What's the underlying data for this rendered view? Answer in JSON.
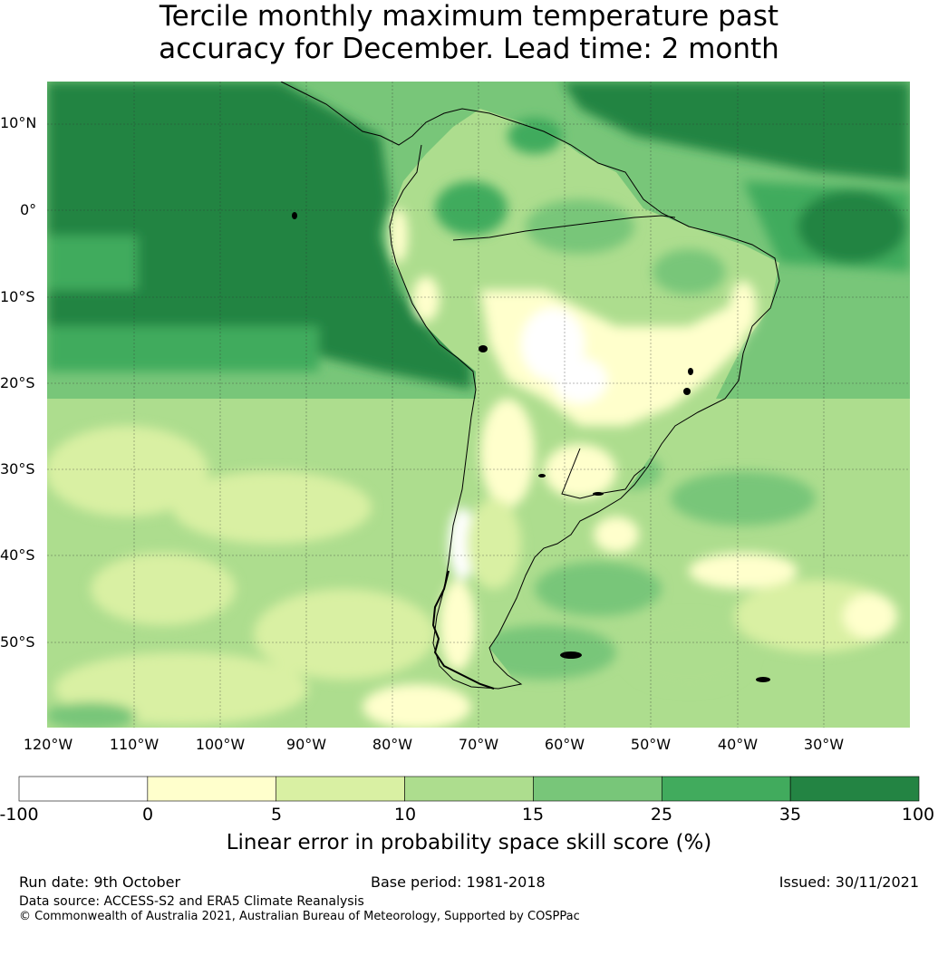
{
  "title_line1": "Tercile monthly maximum temperature past",
  "title_line2": "accuracy for December. Lead time: 2 month",
  "latitudes": [
    "10°N",
    "0°",
    "10°S",
    "20°S",
    "30°S",
    "40°S",
    "50°S"
  ],
  "longitudes": [
    "120°W",
    "110°W",
    "100°W",
    "90°W",
    "80°W",
    "70°W",
    "60°W",
    "50°W",
    "40°W",
    "30°W"
  ],
  "colorbar": {
    "ticks": [
      "-100",
      "0",
      "5",
      "10",
      "15",
      "25",
      "35",
      "100"
    ],
    "colors": [
      "#ffffff",
      "#ffffcc",
      "#d9f0a3",
      "#addd8e",
      "#78c679",
      "#41ab5d",
      "#238443"
    ],
    "label": "Linear error in probability space skill score (%)"
  },
  "footer": {
    "run_date": "Run date: 9th October",
    "base_period": "Base period: 1981-2018",
    "issued": "Issued: 30/11/2021",
    "data_source": "Data source: ACCESS-S2 and ERA5 Climate Reanalysis",
    "copyright": "© Commonwealth of Australia 2021, Australian Bureau of Meteorology, Supported by COSPPac"
  }
}
